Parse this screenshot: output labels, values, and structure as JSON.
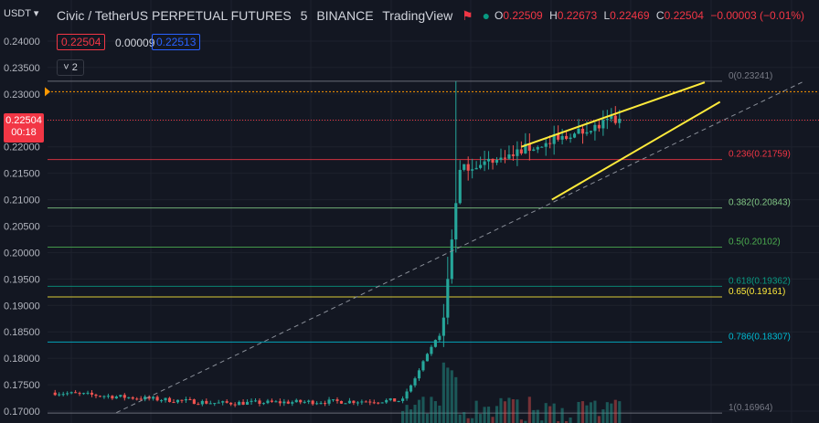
{
  "header": {
    "symbol": "Civic / TetherUS PERPETUAL FUTURES",
    "interval": "5",
    "exchange": "BINANCE",
    "platform": "TradingView",
    "ohlc": {
      "o_label": "O",
      "o_value": "0.22509",
      "h_label": "H",
      "h_value": "0.22673",
      "l_label": "L",
      "l_value": "0.22469",
      "c_label": "C",
      "c_value": "0.22504",
      "change": "−0.00003 (−0.01%)"
    },
    "bid": "0.22504",
    "spread": "0.00009",
    "ask": "0.22513",
    "indicators_count": "2",
    "currency": "USDT"
  },
  "price_tag": {
    "price": "0.22504",
    "countdown": "00:18"
  },
  "colors": {
    "background": "#131722",
    "up": "#26a69a",
    "down": "#ef5350",
    "text": "#d1d4dc",
    "wedge": "#ffeb3b",
    "dashed_trend": "#8a8f99"
  },
  "chart_data": {
    "type": "candlestick",
    "y_axis": {
      "ticks": [
        "0.24000",
        "0.23500",
        "0.23000",
        "0.22500",
        "0.22000",
        "0.21500",
        "0.21000",
        "0.20500",
        "0.20000",
        "0.19500",
        "0.19000",
        "0.18500",
        "0.18000",
        "0.17500",
        "0.17000"
      ],
      "ylim": [
        0.1697,
        0.2432
      ]
    },
    "fib_levels": [
      {
        "label": "0(0.23241)",
        "value": 0.23241,
        "color": "#787b86"
      },
      {
        "label": "0.236(0.21759)",
        "value": 0.21759,
        "color": "#f23645"
      },
      {
        "label": "0.382(0.20843)",
        "value": 0.20843,
        "color": "#81c784"
      },
      {
        "label": "0.5(0.20102)",
        "value": 0.20102,
        "color": "#4caf50"
      },
      {
        "label": "0.618(0.19362)",
        "value": 0.19362,
        "color": "#089981"
      },
      {
        "label": "0.65(0.19161)",
        "value": 0.19161,
        "color": "#ffeb3b"
      },
      {
        "label": "0.786(0.18307)",
        "value": 0.18307,
        "color": "#00bcd4"
      },
      {
        "label": "1(0.16964)",
        "value": 0.16964,
        "color": "#787b86"
      }
    ],
    "current_price": 0.22504,
    "orange_level": 0.23043,
    "price_series": {
      "phases": [
        {
          "name": "flat",
          "start": 0.1735,
          "end": 0.1715,
          "bars": 40
        },
        {
          "name": "base",
          "start": 0.1715,
          "end": 0.172,
          "bars": 45
        },
        {
          "name": "climb",
          "start": 0.172,
          "end": 0.186,
          "bars": 10
        },
        {
          "name": "spike",
          "start": 0.186,
          "end": 0.22,
          "bars": 4
        },
        {
          "name": "wedge",
          "start": 0.215,
          "end": 0.225,
          "bars": 40
        }
      ],
      "spike_high": 0.23241,
      "spike_low": 0.2
    },
    "wedge_lines": [
      {
        "from": [
          0.62,
          0.22
        ],
        "to": [
          0.86,
          0.2322
        ]
      },
      {
        "from": [
          0.66,
          0.21
        ],
        "to": [
          0.88,
          0.2285
        ]
      }
    ],
    "trendline": {
      "from": [
        0.09,
        0.1697
      ],
      "to": [
        0.99,
        0.2324
      ]
    }
  }
}
